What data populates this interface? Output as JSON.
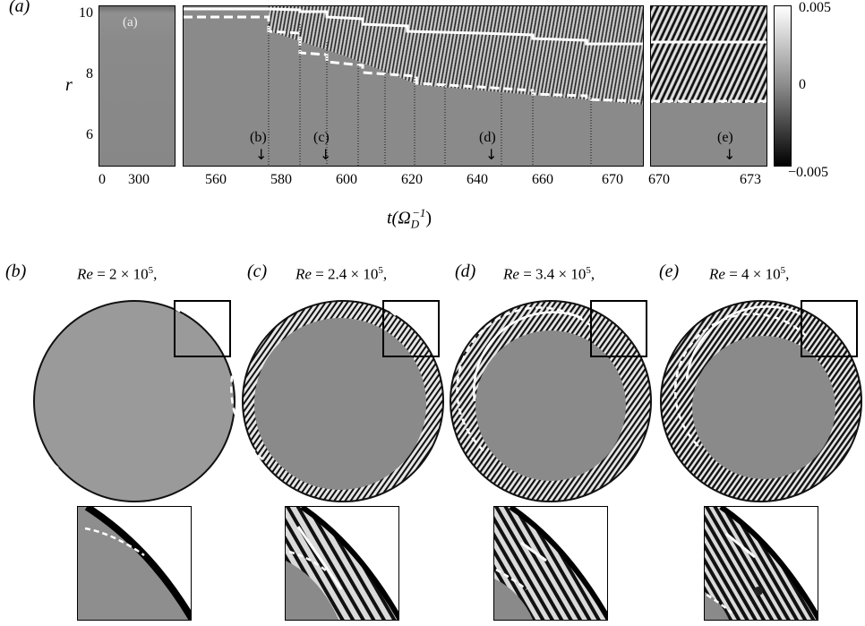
{
  "panel_a": {
    "label": "(a)",
    "inner_label": "(a)",
    "y_axis_label": "r",
    "y_ticks": [
      "10",
      "8",
      "6"
    ],
    "x_ticks_left": [
      "0",
      "300"
    ],
    "x_ticks_mid": [
      "560",
      "580",
      "600",
      "620",
      "640",
      "660",
      "670"
    ],
    "x_ticks_right": [
      "670",
      "673"
    ],
    "x_axis_label_main": "t(Ω",
    "x_axis_label_sub": "D",
    "x_axis_label_sup": "−1",
    "x_axis_label_close": ")",
    "markers": [
      "(b)",
      "(c)",
      "(d)",
      "(e)"
    ],
    "colorbar_ticks": [
      "0.005",
      "0",
      "−0.005"
    ]
  },
  "panels": [
    {
      "label": "(b)",
      "re_prefix": "Re",
      "re_value": " = 2 × 10",
      "re_exp": "5",
      "re_suffix": ","
    },
    {
      "label": "(c)",
      "re_prefix": "Re",
      "re_value": " = 2.4 × 10",
      "re_exp": "5",
      "re_suffix": ","
    },
    {
      "label": "(d)",
      "re_prefix": "Re",
      "re_value": " = 3.4 × 10",
      "re_exp": "5",
      "re_suffix": ","
    },
    {
      "label": "(e)",
      "re_prefix": "Re",
      "re_value": " = 4 × 10",
      "re_exp": "5",
      "re_suffix": ","
    }
  ]
}
